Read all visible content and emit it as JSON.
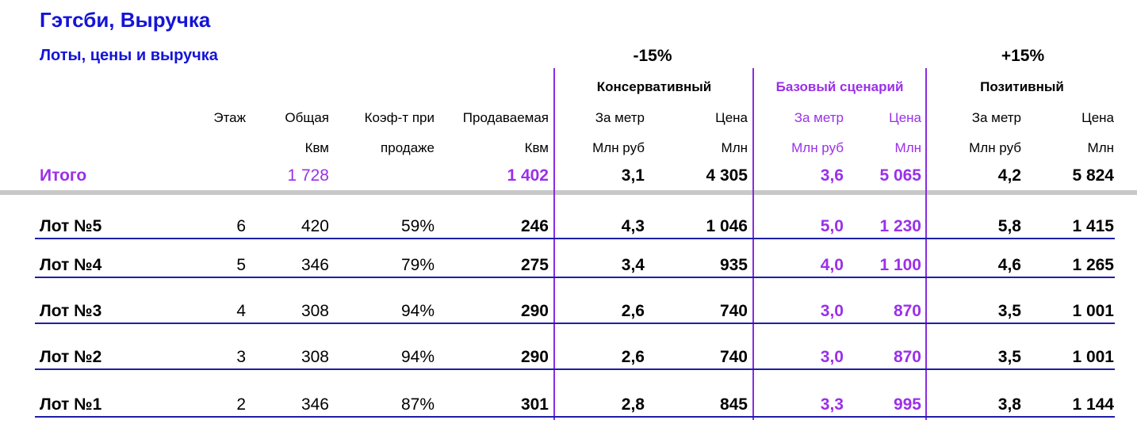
{
  "header": {
    "title": "Гэтсби, Выручка",
    "subtitle": "Лоты, цены и выручка"
  },
  "table": {
    "changes": [
      "-15%",
      "+15%"
    ],
    "groups": [
      "Консервативный",
      "Базовый сценарий",
      "Позитивный"
    ],
    "columns": [
      [
        "Этаж"
      ],
      [
        "Общая",
        "Квм"
      ],
      [
        "Коэф-т при",
        "продаже"
      ],
      [
        "Продаваемая",
        "Квм"
      ],
      [
        "За метр",
        "Млн руб"
      ],
      [
        "Цена",
        "Млн"
      ],
      [
        "За метр",
        "Млн руб"
      ],
      [
        "Цена",
        "Млн"
      ],
      [
        "За метр",
        "Млн руб"
      ],
      [
        "Цена",
        "Млн"
      ]
    ],
    "total": [
      "Итого",
      null,
      "1 728",
      null,
      "1 402",
      "3,1",
      "4 305",
      "3,6",
      "5 065",
      "4,2",
      "5 824"
    ],
    "rows": [
      [
        "Лот №5",
        "6",
        "420",
        "59%",
        "246",
        "4,3",
        "1 046",
        "5,0",
        "1 230",
        "5,8",
        "1 415"
      ],
      [
        "Лот №4",
        "5",
        "346",
        "79%",
        "275",
        "3,4",
        "935",
        "4,0",
        "1 100",
        "4,6",
        "1 265"
      ],
      [
        "Лот №3",
        "4",
        "308",
        "94%",
        "290",
        "2,6",
        "740",
        "3,0",
        "870",
        "3,5",
        "1 001"
      ],
      [
        "Лот №2",
        "3",
        "308",
        "94%",
        "290",
        "2,6",
        "740",
        "3,0",
        "870",
        "3,5",
        "1 001"
      ],
      [
        "Лот №1",
        "2",
        "346",
        "87%",
        "301",
        "2,8",
        "845",
        "3,3",
        "995",
        "3,8",
        "1 144"
      ]
    ]
  }
}
